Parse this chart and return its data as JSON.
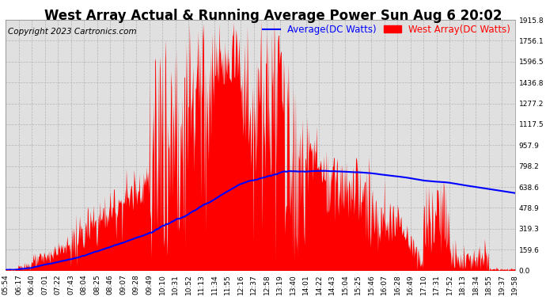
{
  "title": "West Array Actual & Running Average Power Sun Aug 6 20:02",
  "copyright": "Copyright 2023 Cartronics.com",
  "legend_avg": "Average(DC Watts)",
  "legend_west": "West Array(DC Watts)",
  "legend_avg_color": "blue",
  "legend_west_color": "red",
  "background_color": "#ffffff",
  "plot_bg_color": "#e0e0e0",
  "grid_color": "#aaaaaa",
  "ylim": [
    0,
    1915.8
  ],
  "yticks": [
    0.0,
    159.6,
    319.3,
    478.9,
    638.6,
    798.2,
    957.9,
    1117.5,
    1277.2,
    1436.8,
    1596.5,
    1756.1,
    1915.8
  ],
  "xtick_labels": [
    "05:54",
    "06:17",
    "06:40",
    "07:01",
    "07:22",
    "07:43",
    "08:04",
    "08:25",
    "08:46",
    "09:07",
    "09:28",
    "09:49",
    "10:10",
    "10:31",
    "10:52",
    "11:13",
    "11:34",
    "11:55",
    "12:16",
    "12:37",
    "12:58",
    "13:19",
    "13:40",
    "14:01",
    "14:22",
    "14:43",
    "15:04",
    "15:25",
    "15:46",
    "16:07",
    "16:28",
    "16:49",
    "17:10",
    "17:31",
    "17:52",
    "18:13",
    "18:34",
    "18:55",
    "19:37",
    "19:58"
  ],
  "title_fontsize": 12,
  "copyright_fontsize": 7.5,
  "tick_fontsize": 6.5,
  "legend_fontsize": 8.5
}
